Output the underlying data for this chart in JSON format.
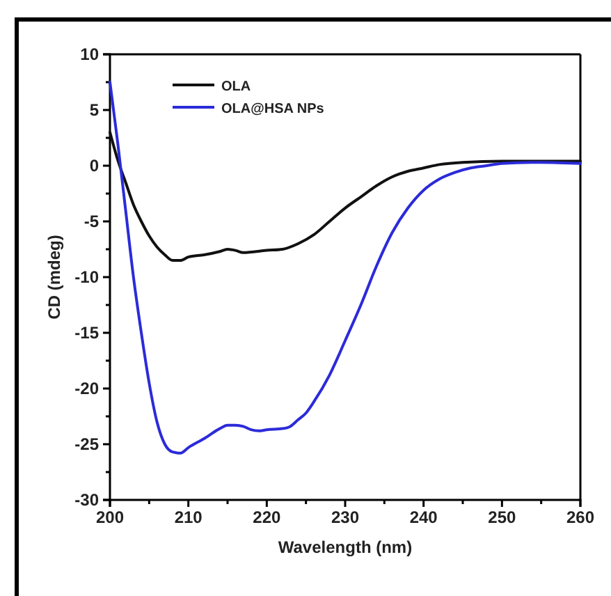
{
  "chart_data": {
    "type": "line",
    "xlabel": "Wavelength (nm)",
    "ylabel": "CD (mdeg)",
    "xlim": [
      200,
      260
    ],
    "ylim": [
      -30,
      10
    ],
    "xticks": [
      200,
      {
        "value": 205,
        "label": null
      },
      210,
      {
        "value": 215,
        "label": null
      },
      220,
      {
        "value": 225,
        "label": null
      },
      230,
      {
        "value": 235,
        "label": null
      },
      240,
      {
        "value": 245,
        "label": null
      },
      250,
      {
        "value": 255,
        "label": null
      },
      260
    ],
    "yticks": [
      -30,
      {
        "value": -27.5,
        "label": null
      },
      -25,
      {
        "value": -22.5,
        "label": null
      },
      -20,
      {
        "value": -17.5,
        "label": null
      },
      -15,
      {
        "value": -12.5,
        "label": null
      },
      -10,
      {
        "value": -7.5,
        "label": null
      },
      -5,
      {
        "value": -2.5,
        "label": null
      },
      0,
      {
        "value": 2.5,
        "label": null
      },
      5,
      {
        "value": 7.5,
        "label": null
      },
      10
    ],
    "legend": "top left",
    "grid": false,
    "marker": "none",
    "line_style": "solid",
    "series": [
      {
        "name": "OLA",
        "color": "#111111",
        "x": [
          200,
          201,
          202,
          203,
          204,
          205,
          206,
          207,
          208,
          209,
          210,
          212,
          214,
          215,
          216,
          217,
          220,
          222,
          224,
          226,
          228,
          230,
          232,
          234,
          236,
          238,
          240,
          242,
          245,
          250,
          255,
          260
        ],
        "values": [
          3,
          0.5,
          -1.5,
          -3.5,
          -5,
          -6.3,
          -7.3,
          -8,
          -8.5,
          -8.5,
          -8.2,
          -8,
          -7.7,
          -7.5,
          -7.6,
          -7.8,
          -7.6,
          -7.5,
          -7,
          -6.2,
          -5,
          -3.8,
          -2.8,
          -1.8,
          -1,
          -0.5,
          -0.2,
          0.1,
          0.3,
          0.4,
          0.4,
          0.4
        ]
      },
      {
        "name": "OLA@HSA NPs",
        "color": "#2b2bd9",
        "x": [
          200,
          201,
          202,
          203,
          204,
          205,
          206,
          207,
          208,
          209,
          210,
          212,
          214,
          215,
          216,
          217,
          218,
          219,
          220,
          222,
          223,
          224,
          225,
          226,
          228,
          230,
          232,
          234,
          236,
          238,
          240,
          242,
          244,
          246,
          248,
          250,
          255,
          260
        ],
        "values": [
          7.5,
          2,
          -4,
          -10,
          -15,
          -19.5,
          -23,
          -25,
          -25.7,
          -25.8,
          -25.3,
          -24.5,
          -23.6,
          -23.3,
          -23.3,
          -23.4,
          -23.7,
          -23.8,
          -23.7,
          -23.6,
          -23.4,
          -22.8,
          -22.2,
          -21.2,
          -18.8,
          -15.7,
          -12.5,
          -9,
          -6,
          -3.8,
          -2.2,
          -1.2,
          -0.6,
          -0.2,
          0,
          0.2,
          0.3,
          0.2
        ]
      }
    ]
  }
}
